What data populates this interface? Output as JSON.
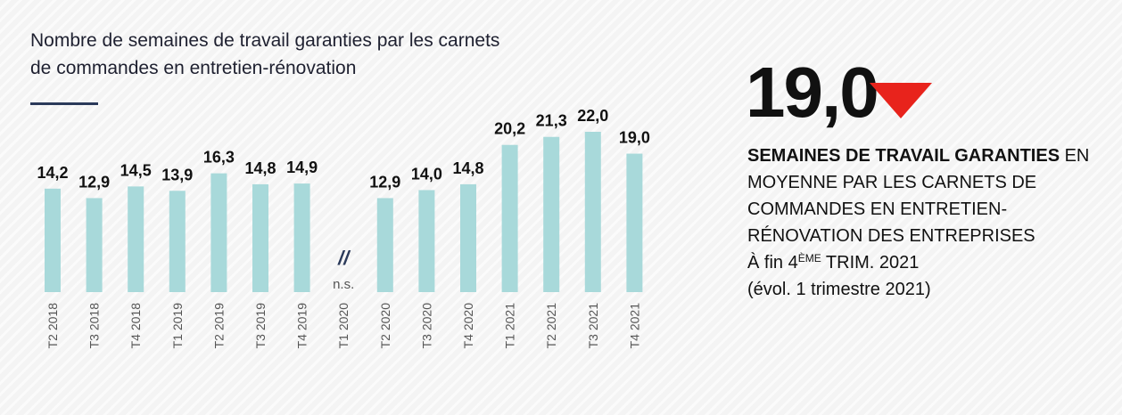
{
  "chart_data": {
    "type": "bar",
    "title": [
      "Nombre de semaines de travail garanties par les carnets",
      "de commandes en entretien-rénovation"
    ],
    "categories": [
      "T2 2018",
      "T3 2018",
      "T4 2018",
      "T1 2019",
      "T2 2019",
      "T3 2019",
      "T4 2019",
      "T1 2020",
      "T2 2020",
      "T3 2020",
      "T4 2020",
      "T1 2021",
      "T2 2021",
      "T3 2021",
      "T4 2021"
    ],
    "values": [
      14.2,
      12.9,
      14.5,
      13.9,
      16.3,
      14.8,
      14.9,
      null,
      12.9,
      14.0,
      14.8,
      20.2,
      21.3,
      22.0,
      19.0
    ],
    "value_labels": [
      "14,2",
      "12,9",
      "14,5",
      "13,9",
      "16,3",
      "14,8",
      "14,9",
      "n.s.",
      "12,9",
      "14,0",
      "14,8",
      "20,2",
      "21,3",
      "22,0",
      "19,0"
    ],
    "gap_mark": "//",
    "color": "#a8d9da"
  },
  "highlight": {
    "value": "19,0",
    "trend_color": "#e8231c",
    "bold": "SEMAINES DE TRAVAIL GARANTIES",
    "text": " EN MOYENNE PAR LES CARNETS DE COMMANDES EN ENTRETIEN-RÉNOVATION DES ENTREPRISES",
    "date_prefix": "À fin 4",
    "date_sup": "ÈME",
    "date_suffix": " TRIM. 2021",
    "note": "(évol. 1 trimestre 2021)"
  }
}
